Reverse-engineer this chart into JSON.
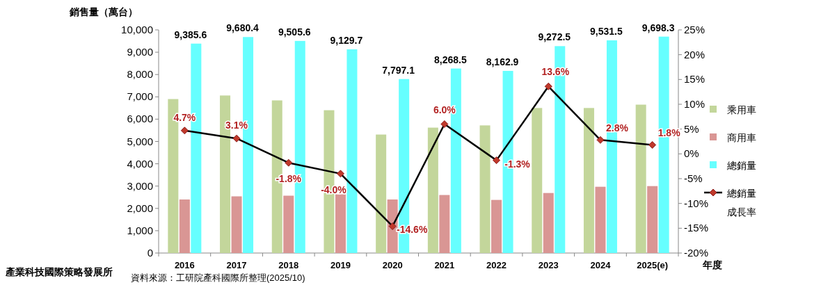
{
  "chart_data": {
    "type": "bar",
    "categories": [
      "2016",
      "2017",
      "2018",
      "2019",
      "2020",
      "2021",
      "2022",
      "2023",
      "2024",
      "2025(e)"
    ],
    "xlabel": "年度",
    "ylabel": "銷售量（萬台）",
    "ylim": [
      0,
      10000
    ],
    "yticks": [
      {
        "value": 0,
        "label": "0"
      },
      {
        "value": 1000,
        "label": "1,000"
      },
      {
        "value": 2000,
        "label": "2,000"
      },
      {
        "value": 3000,
        "label": "3,000"
      },
      {
        "value": 4000,
        "label": "4,000"
      },
      {
        "value": 5000,
        "label": "5,000"
      },
      {
        "value": 6000,
        "label": "6,000"
      },
      {
        "value": 7000,
        "label": "7,000"
      },
      {
        "value": 8000,
        "label": "8,000"
      },
      {
        "value": 9000,
        "label": "9,000"
      },
      {
        "value": 10000,
        "label": "10,000"
      }
    ],
    "y2lim": [
      -20,
      25
    ],
    "y2ticks": [
      {
        "value": -20,
        "label": "-20%"
      },
      {
        "value": -15,
        "label": "-15%"
      },
      {
        "value": -10,
        "label": "-10%"
      },
      {
        "value": -5,
        "label": "-5%"
      },
      {
        "value": 0,
        "label": "0%"
      },
      {
        "value": 5,
        "label": "5%"
      },
      {
        "value": 10,
        "label": "10%"
      },
      {
        "value": 15,
        "label": "15%"
      },
      {
        "value": 20,
        "label": "20%"
      },
      {
        "value": 25,
        "label": "25%"
      }
    ],
    "legend": "right",
    "marker": "diamond",
    "series": [
      {
        "name": "乘用車",
        "type": "bar",
        "color": "#c3d69b",
        "values": [
          6900,
          7060,
          6840,
          6400,
          5310,
          5620,
          5720,
          6500,
          6500,
          6650
        ]
      },
      {
        "name": "商用車",
        "type": "bar",
        "color": "#d99694",
        "values": [
          2400,
          2540,
          2570,
          2630,
          2400,
          2600,
          2380,
          2690,
          2970,
          3000
        ]
      },
      {
        "name": "總銷量",
        "type": "bar",
        "color": "#66ffff",
        "values": [
          9385.6,
          9680.4,
          9505.6,
          9129.7,
          7797.1,
          8268.5,
          8162.9,
          9272.5,
          9531.5,
          9698.3
        ],
        "value_labels": [
          "9,385.6",
          "9,680.4",
          "9,505.6",
          "9,129.7",
          "7,797.1",
          "8,268.5",
          "8,162.9",
          "9,272.5",
          "9,531.5",
          "9,698.3"
        ]
      },
      {
        "name": "總銷量成長率",
        "type": "line",
        "axis": "y2",
        "color": "#000000",
        "values": [
          4.7,
          3.1,
          -1.8,
          -4.0,
          -14.6,
          6.0,
          -1.3,
          13.6,
          2.8,
          1.8
        ],
        "value_labels": [
          "4.7%",
          "3.1%",
          "-1.8%",
          "-4.0%",
          "-14.6%",
          "6.0%",
          "-1.3%",
          "13.6%",
          "2.8%",
          "1.8%"
        ]
      }
    ],
    "annotations": [
      "產業科技國際策略發展所",
      "資料來源：工研院產科國際所整理(2025/10)"
    ]
  }
}
